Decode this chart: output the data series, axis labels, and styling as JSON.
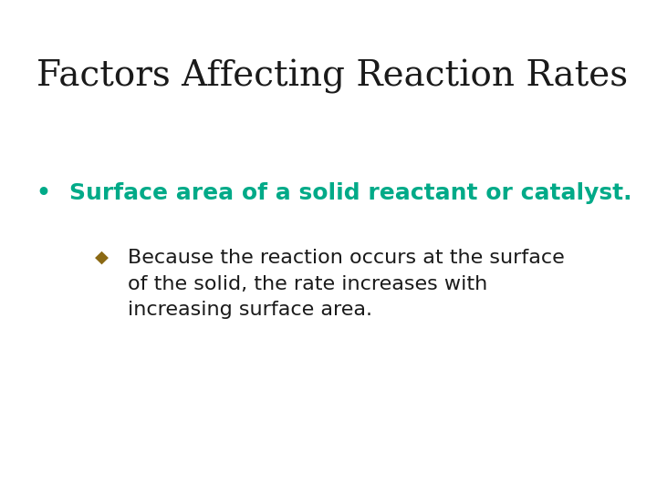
{
  "title": "Factors Affecting Reaction Rates",
  "title_color": "#1a1a1a",
  "title_fontsize": 28,
  "title_font": "serif",
  "background_color": "#ffffff",
  "bullet1_text": "Surface area of a solid reactant or catalyst.",
  "bullet1_color": "#00aa88",
  "bullet1_fontsize": 18,
  "bullet1_marker": "•",
  "bullet1_marker_color": "#00aa88",
  "bullet2_line1": "Because the reaction occurs at the surface",
  "bullet2_line2": "of the solid, the rate increases with",
  "bullet2_line3": "increasing surface area.",
  "bullet2_color": "#1a1a1a",
  "bullet2_fontsize": 16,
  "bullet2_marker": "◆",
  "bullet2_marker_color": "#8B6914"
}
